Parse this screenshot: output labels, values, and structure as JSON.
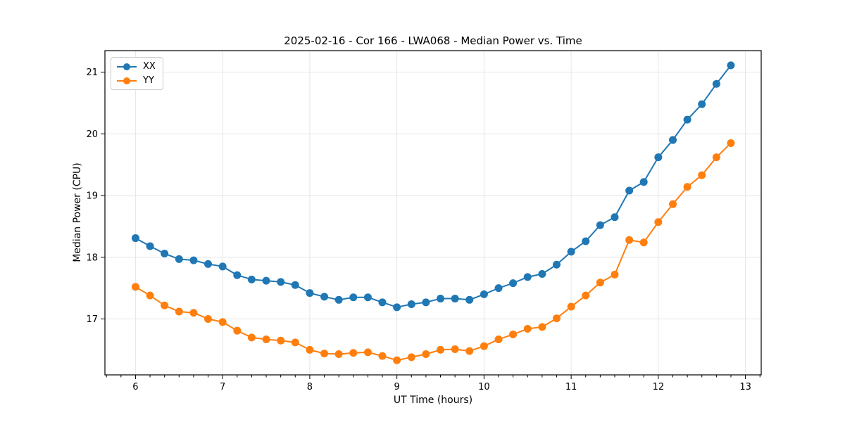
{
  "figure": {
    "background": "#ffffff"
  },
  "chart_data": {
    "type": "line",
    "title": "2025-02-16 - Cor 166 - LWA068 - Median Power vs. Time",
    "xlabel": "UT Time (hours)",
    "ylabel": "Median Power (CPU)",
    "x": [
      6.0,
      6.167,
      6.333,
      6.5,
      6.667,
      6.833,
      7.0,
      7.167,
      7.333,
      7.5,
      7.667,
      7.833,
      8.0,
      8.167,
      8.333,
      8.5,
      8.667,
      8.833,
      9.0,
      9.167,
      9.333,
      9.5,
      9.667,
      9.833,
      10.0,
      10.167,
      10.333,
      10.5,
      10.667,
      10.833,
      11.0,
      11.167,
      11.333,
      11.5,
      11.667,
      11.833,
      12.0,
      12.167,
      12.333,
      12.5,
      12.667,
      12.833
    ],
    "series": [
      {
        "name": "XX",
        "color": "#1f77b4",
        "values": [
          18.31,
          18.18,
          18.06,
          17.97,
          17.95,
          17.89,
          17.85,
          17.71,
          17.64,
          17.62,
          17.6,
          17.55,
          17.42,
          17.36,
          17.31,
          17.35,
          17.35,
          17.27,
          17.19,
          17.24,
          17.27,
          17.33,
          17.33,
          17.31,
          17.4,
          17.5,
          17.58,
          17.68,
          17.73,
          17.88,
          18.09,
          18.26,
          18.52,
          18.65,
          19.08,
          19.22,
          19.62,
          19.9,
          20.23,
          20.48,
          20.81,
          21.11
        ]
      },
      {
        "name": "YY",
        "color": "#ff7f0e",
        "values": [
          17.52,
          17.38,
          17.22,
          17.12,
          17.1,
          17.0,
          16.95,
          16.81,
          16.7,
          16.67,
          16.65,
          16.62,
          16.5,
          16.44,
          16.43,
          16.45,
          16.46,
          16.4,
          16.33,
          16.38,
          16.43,
          16.5,
          16.51,
          16.48,
          16.56,
          16.67,
          16.75,
          16.84,
          16.87,
          17.01,
          17.2,
          17.38,
          17.59,
          17.72,
          18.28,
          18.24,
          18.57,
          18.86,
          19.14,
          19.33,
          19.62,
          19.85
        ]
      }
    ],
    "x_ticks": [
      6,
      7,
      8,
      9,
      10,
      11,
      12,
      13
    ],
    "y_ticks": [
      17,
      18,
      19,
      20,
      21
    ],
    "xlim": [
      5.649,
      13.181
    ],
    "ylim": [
      16.094,
      21.348
    ],
    "grid": true,
    "legend_position": "upper-left",
    "x_minor_tick_step": 0.1667
  },
  "style": {
    "grid_color": "#e6e6e6",
    "frame_color": "#000000",
    "tick_label_color": "#000000"
  }
}
